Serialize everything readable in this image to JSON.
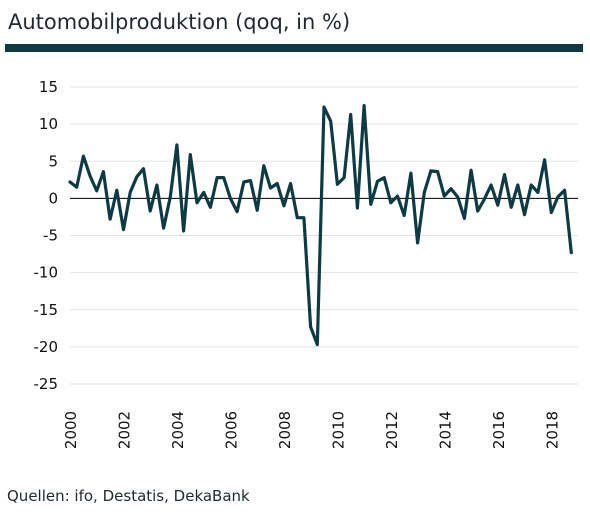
{
  "title": "Automobilproduktion (qoq, in %)",
  "source": "Quellen: ifo, Destatis, DekaBank",
  "colors": {
    "line": "#0e3a44",
    "rule": "#0e3a44",
    "grid": "#e3e3e3",
    "axis": "#000000"
  },
  "chart_data": {
    "type": "line",
    "title": "Automobilproduktion (qoq, in %)",
    "xlabel": "",
    "ylabel": "",
    "ylim": [
      -25,
      15
    ],
    "yticks": [
      15,
      10,
      5,
      0,
      -5,
      -10,
      -15,
      -20,
      -25
    ],
    "xlim": [
      2000,
      2019
    ],
    "xticks": [
      "2000",
      "2002",
      "2004",
      "2006",
      "2008",
      "2010",
      "2012",
      "2014",
      "2016",
      "2018"
    ],
    "grid": "horizontal",
    "series": [
      {
        "frequency": "quarterly",
        "start": "2000Q1",
        "values": [
          2.2,
          1.5,
          5.7,
          3.0,
          1.0,
          3.6,
          -2.8,
          1.1,
          -4.2,
          0.8,
          2.9,
          4.0,
          -1.7,
          1.8,
          -4.0,
          0.2,
          7.2,
          -4.4,
          5.9,
          -0.6,
          0.8,
          -1.2,
          2.8,
          2.8,
          0.0,
          -1.8,
          2.2,
          2.4,
          -1.6,
          4.4,
          1.4,
          2.0,
          -1.0,
          2.0,
          -2.6,
          -2.6,
          -17.3,
          -19.7,
          12.3,
          10.4,
          1.9,
          2.8,
          11.3,
          -1.3,
          12.5,
          -0.8,
          2.3,
          2.8,
          -0.6,
          0.3,
          -2.3,
          3.4,
          -6.0,
          0.8,
          3.7,
          3.6,
          0.3,
          1.3,
          0.2,
          -2.7,
          3.8,
          -1.7,
          -0.1,
          1.8,
          -0.9,
          3.2,
          -1.2,
          1.8,
          -2.2,
          1.8,
          0.8,
          5.2,
          -1.9,
          0.2,
          1.1,
          -7.3
        ]
      }
    ]
  }
}
